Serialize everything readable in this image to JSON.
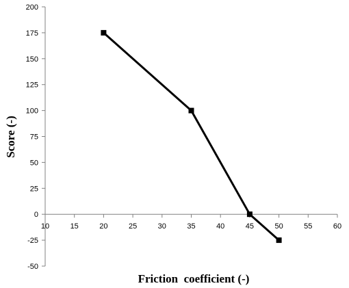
{
  "chart_data": {
    "type": "line",
    "title": "",
    "xlabel": "Friction  coefficient (-)",
    "ylabel": "Score (-)",
    "xlim": [
      10,
      60
    ],
    "ylim": [
      -50,
      200
    ],
    "x_ticks": [
      10,
      15,
      20,
      25,
      30,
      35,
      40,
      45,
      50,
      55,
      60
    ],
    "y_ticks": [
      -50,
      -25,
      0,
      25,
      50,
      75,
      100,
      125,
      150,
      175,
      200
    ],
    "grid": false,
    "legend": "none",
    "series": [
      {
        "x": [
          20,
          35,
          45,
          50
        ],
        "y": [
          175,
          100,
          0,
          -25
        ],
        "marker": "square",
        "color": "#000000"
      }
    ]
  }
}
